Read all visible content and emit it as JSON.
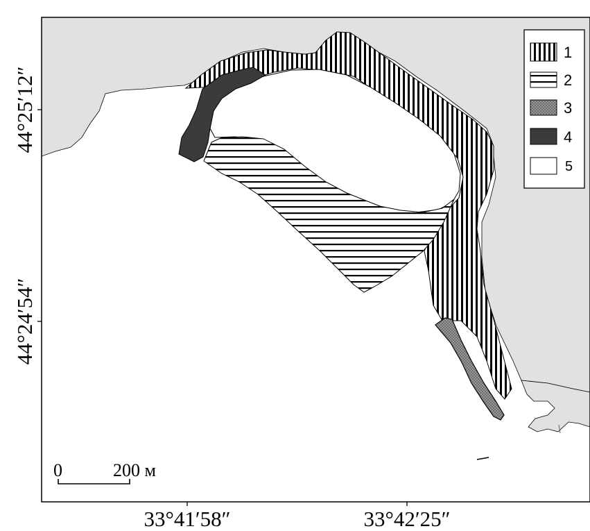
{
  "map": {
    "latitude_labels": [
      "44°25′12″",
      "44°24′54″"
    ],
    "longitude_labels": [
      "33°41′58″",
      "33°42′25″"
    ],
    "scale_bar": {
      "start_label": "0",
      "end_label": "200 м"
    },
    "legend": [
      {
        "key": "1",
        "label": "1",
        "pattern": "vertical-stripes"
      },
      {
        "key": "2",
        "label": "2",
        "pattern": "horizontal-stripes"
      },
      {
        "key": "3",
        "label": "3",
        "pattern": "gray-crosshatch"
      },
      {
        "key": "4",
        "label": "4",
        "pattern": "solid-dark"
      },
      {
        "key": "5",
        "label": "5",
        "pattern": "blank-white"
      }
    ],
    "colors": {
      "land": "#e1e1e1",
      "sea": "#ffffff",
      "zone_dark": "#3b3b3b",
      "zone_gray": "#8c8c8c",
      "stroke": "#000000"
    }
  }
}
